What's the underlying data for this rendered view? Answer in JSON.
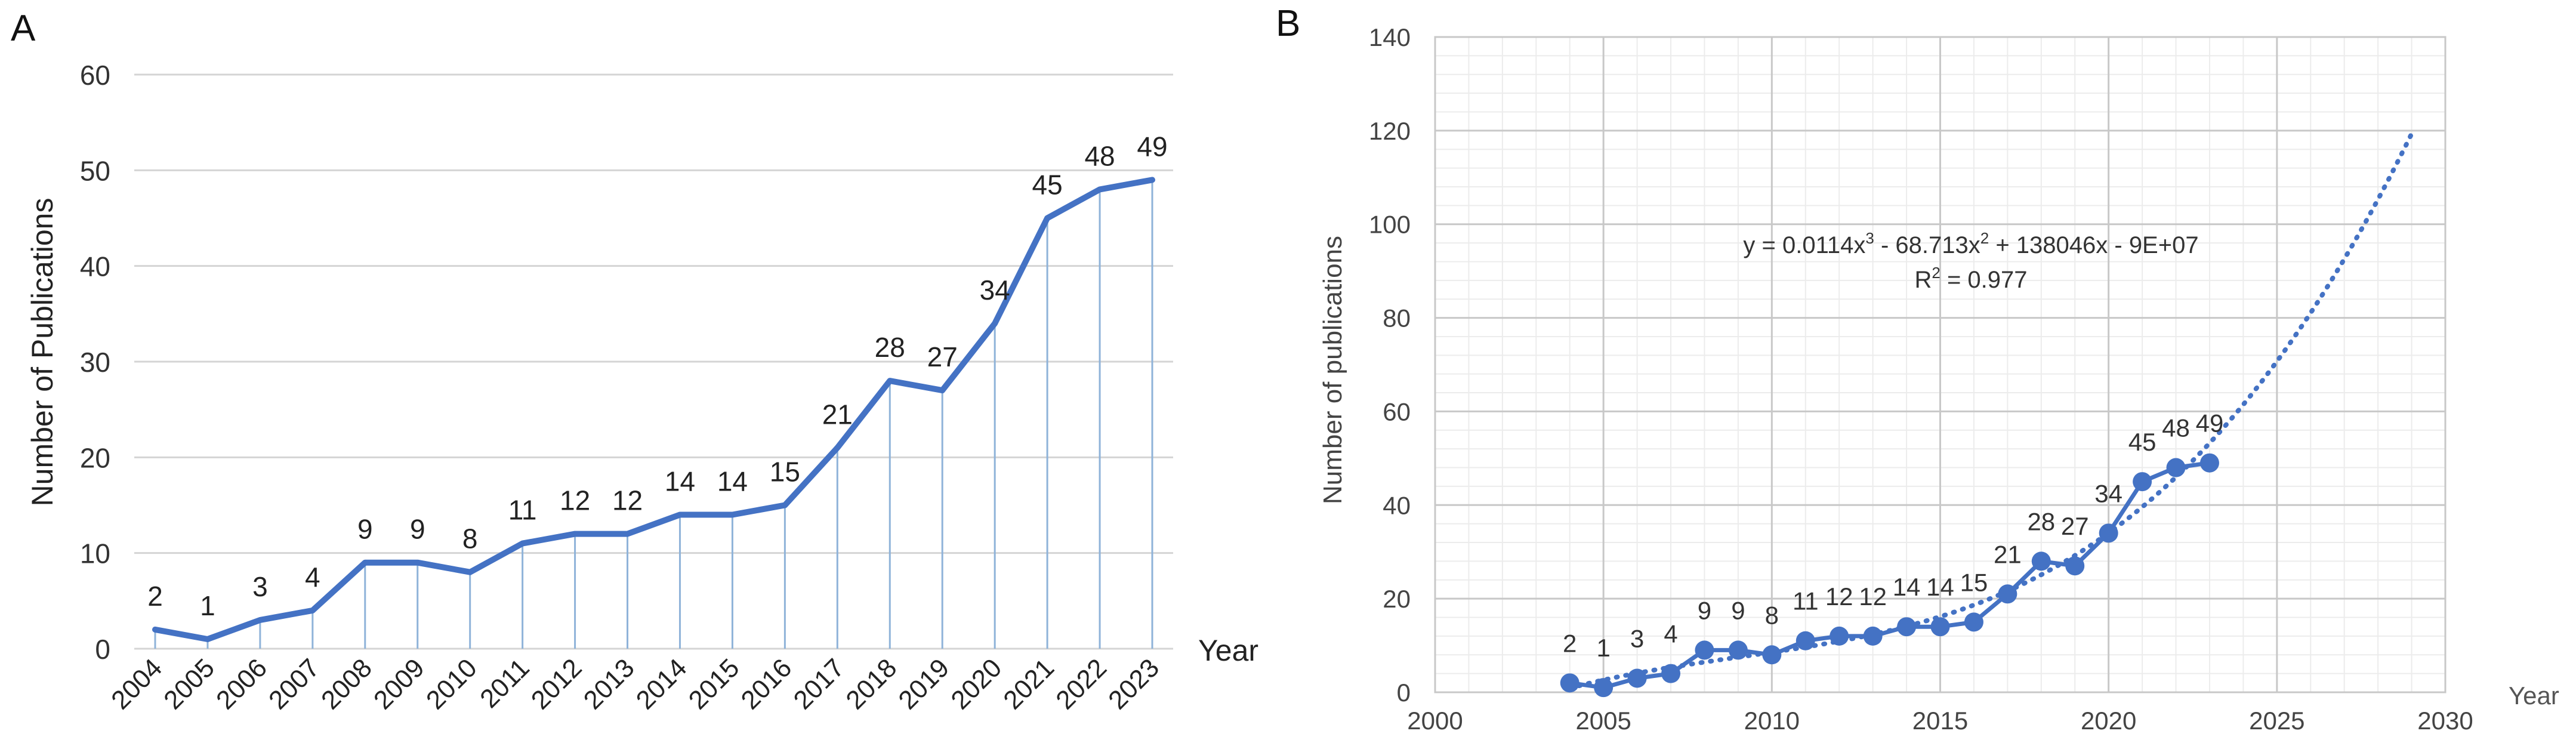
{
  "panels": {
    "a": {
      "letter": "A"
    },
    "b": {
      "letter": "B"
    }
  },
  "chart_data": [
    {
      "type": "line",
      "panel": "A",
      "title": "",
      "xlabel": "Year",
      "ylabel": "Number of Publications",
      "categories": [
        "2004",
        "2005",
        "2006",
        "2007",
        "2008",
        "2009",
        "2010",
        "2011",
        "2012",
        "2013",
        "2014",
        "2015",
        "2016",
        "2017",
        "2018",
        "2019",
        "2020",
        "2021",
        "2022",
        "2023"
      ],
      "values": [
        2,
        1,
        3,
        4,
        9,
        9,
        8,
        11,
        12,
        12,
        14,
        14,
        15,
        21,
        28,
        27,
        34,
        45,
        48,
        49
      ],
      "data_labels": [
        "2",
        "1",
        "3",
        "4",
        "9",
        "9",
        "8",
        "11",
        "12",
        "12",
        "14",
        "14",
        "15",
        "21",
        "28",
        "27",
        "34",
        "45",
        "48",
        "49"
      ],
      "ylim": [
        0,
        60
      ],
      "yticks": [
        "0",
        "10",
        "20",
        "30",
        "40",
        "50",
        "60"
      ],
      "grid": true,
      "drop_lines": true,
      "line_color": "#4472c4",
      "drop_color": "#8fb3d9"
    },
    {
      "type": "scatter",
      "panel": "B",
      "title": "",
      "xlabel": "Year",
      "ylabel": "Number of publications",
      "series": [
        {
          "name": "Publications",
          "x": [
            2004,
            2005,
            2006,
            2007,
            2008,
            2009,
            2010,
            2011,
            2012,
            2013,
            2014,
            2015,
            2016,
            2017,
            2018,
            2019,
            2020,
            2021,
            2022,
            2023
          ],
          "values": [
            2,
            1,
            3,
            4,
            9,
            9,
            8,
            11,
            12,
            12,
            14,
            14,
            15,
            21,
            28,
            27,
            34,
            45,
            48,
            49
          ],
          "data_labels": [
            "2",
            "1",
            "3",
            "4",
            "9",
            "9",
            "8",
            "11",
            "12",
            "12",
            "14",
            "14",
            "15",
            "21",
            "28",
            "27",
            "34",
            "45",
            "48",
            "49"
          ],
          "marker": "circle"
        }
      ],
      "trendline": {
        "type": "polynomial",
        "degree": 3,
        "x_range": [
          2004,
          2029
        ],
        "equation_line1": "y = 0.0114x",
        "eq_exp1": "3",
        "equation_mid": " - 68.713x",
        "eq_exp2": "2",
        "equation_end": " + 138046x - 9E+07",
        "r2_prefix": "R",
        "r2_exp": "2",
        "r2_value": " = 0.977"
      },
      "xlim": [
        2000,
        2030
      ],
      "ylim": [
        0,
        140
      ],
      "xticks": [
        "2000",
        "2005",
        "2010",
        "2015",
        "2020",
        "2025",
        "2030"
      ],
      "yticks": [
        "0",
        "20",
        "40",
        "60",
        "80",
        "100",
        "120",
        "140"
      ],
      "grid": true,
      "minor_grid": true,
      "line_color": "#4472c4"
    }
  ]
}
